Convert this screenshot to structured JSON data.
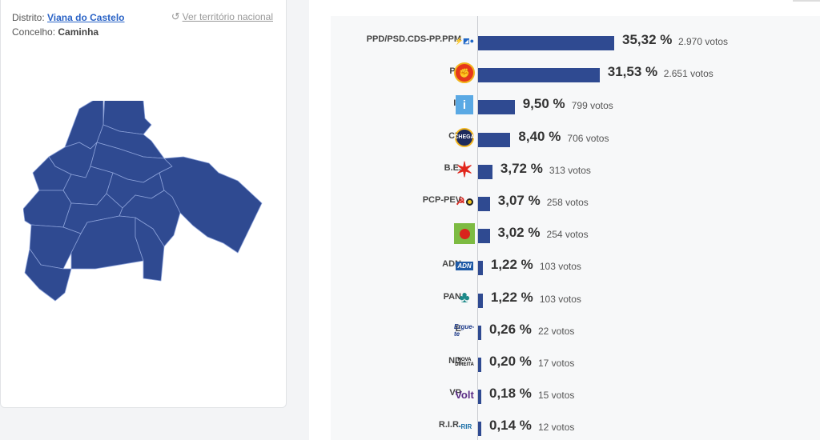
{
  "location": {
    "district_label": "Distrito:",
    "district_value": "Viana do Castelo",
    "municipality_label": "Concelho:",
    "municipality_value": "Caminha",
    "national_link": "Ver território nacional"
  },
  "colors": {
    "bar": "#2f4a91",
    "map_fill": "#2f4a91"
  },
  "results": [
    {
      "party": "PPD/PSD.CDS-PP.PPM",
      "icon": "ad-coalition-logo",
      "percent_text": "35,32 %",
      "votes_text": "2.970 votos",
      "percent": 35.32
    },
    {
      "party": "PS",
      "icon": "ps-logo",
      "percent_text": "31,53 %",
      "votes_text": "2.651 votos",
      "percent": 31.53
    },
    {
      "party": "IL",
      "icon": "il-logo",
      "percent_text": "9,50 %",
      "votes_text": "799 votos",
      "percent": 9.5
    },
    {
      "party": "CH",
      "icon": "chega-logo",
      "percent_text": "8,40 %",
      "votes_text": "706 votos",
      "percent": 8.4
    },
    {
      "party": "B.E.",
      "icon": "be-logo",
      "percent_text": "3,72 %",
      "votes_text": "313 votos",
      "percent": 3.72
    },
    {
      "party": "PCP-PEV",
      "icon": "cdu-logo",
      "percent_text": "3,07 %",
      "votes_text": "258 votos",
      "percent": 3.07
    },
    {
      "party": "L",
      "icon": "livre-logo",
      "percent_text": "3,02 %",
      "votes_text": "254 votos",
      "percent": 3.02
    },
    {
      "party": "ADN",
      "icon": "adn-logo",
      "percent_text": "1,22 %",
      "votes_text": "103 votos",
      "percent": 1.22
    },
    {
      "party": "PAN",
      "icon": "pan-logo",
      "percent_text": "1,22 %",
      "votes_text": "103 votos",
      "percent": 1.22
    },
    {
      "party": "E",
      "icon": "ergue-te-logo",
      "percent_text": "0,26 %",
      "votes_text": "22 votos",
      "percent": 0.26
    },
    {
      "party": "ND",
      "icon": "nova-direita-logo",
      "percent_text": "0,20 %",
      "votes_text": "17 votos",
      "percent": 0.2
    },
    {
      "party": "VP",
      "icon": "volt-logo",
      "percent_text": "0,18 %",
      "votes_text": "15 votos",
      "percent": 0.18
    },
    {
      "party": "R.I.R.",
      "icon": "rir-logo",
      "percent_text": "0,14 %",
      "votes_text": "12 votos",
      "percent": 0.14
    }
  ]
}
